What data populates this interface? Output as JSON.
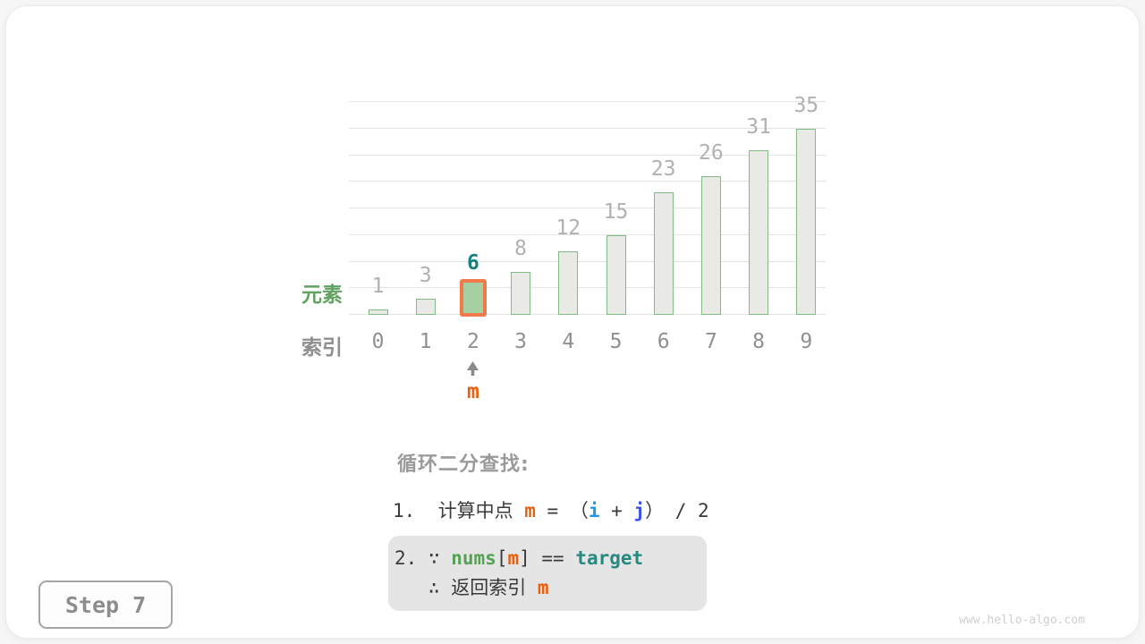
{
  "colors": {
    "dark": "#3a3a3a",
    "orange": "#e8600f",
    "blue": "#2196f3",
    "indigo": "#3a52ee",
    "green": "#57a057",
    "teal": "#27897f",
    "heading_gray": "#9a9a9a",
    "element_green": "#64a264",
    "index_gray": "#8f8f8f",
    "value_gray": "#b1b1b1",
    "highlight_value_teal": "#16847c",
    "bar_fill": "#e9eae6",
    "bar_stroke": "#85b985",
    "highlight_fill": "#a6d0a2",
    "highlight_stroke": "#f2794b",
    "gridline": "#e3e3e3",
    "box_bg": "#e5e5e5",
    "step_text": "#8d8d8d",
    "step_border": "#a5a5a5",
    "watermark": "#cfcfcf",
    "arrow_gray": "#8a8a8a"
  },
  "chart_data": {
    "type": "bar",
    "title": "",
    "categories": [
      "0",
      "1",
      "2",
      "3",
      "4",
      "5",
      "6",
      "7",
      "8",
      "9"
    ],
    "values": [
      1,
      3,
      6,
      8,
      12,
      15,
      23,
      26,
      31,
      35
    ],
    "highlight_index": 2,
    "highlight_value": 6,
    "y_axis_label": "元素",
    "x_axis_label": "索引",
    "ylim": [
      0,
      40
    ],
    "grid_step": 5,
    "grid": "horizontal-only",
    "legend": "none",
    "pointer": {
      "index": 2,
      "label": "m"
    }
  },
  "annotation": {
    "heading": "循环二分查找:",
    "line1_tokens": [
      {
        "t": "1.  计算中点 ",
        "c": "dark"
      },
      {
        "t": "m",
        "c": "orange",
        "b": true
      },
      {
        "t": " = ",
        "c": "dark"
      },
      {
        "t": "（",
        "c": "dark"
      },
      {
        "t": "i",
        "c": "blue",
        "b": true
      },
      {
        "t": " + ",
        "c": "dark"
      },
      {
        "t": "j",
        "c": "indigo",
        "b": true
      },
      {
        "t": "） / 2",
        "c": "dark"
      }
    ],
    "box": {
      "line1_tokens": [
        {
          "t": "2. ",
          "c": "dark"
        },
        {
          "t": "∵ ",
          "c": "dark"
        },
        {
          "t": "nums",
          "c": "green",
          "b": true
        },
        {
          "t": "[",
          "c": "dark"
        },
        {
          "t": "m",
          "c": "orange",
          "b": true
        },
        {
          "t": "] == ",
          "c": "dark"
        },
        {
          "t": "target",
          "c": "teal",
          "b": true
        }
      ],
      "line2_tokens": [
        {
          "t": "   ∴ 返回索引 ",
          "c": "dark"
        },
        {
          "t": "m",
          "c": "orange",
          "b": true
        }
      ]
    }
  },
  "footer": {
    "step_label": "Step 7",
    "watermark": "www.hello-algo.com"
  }
}
